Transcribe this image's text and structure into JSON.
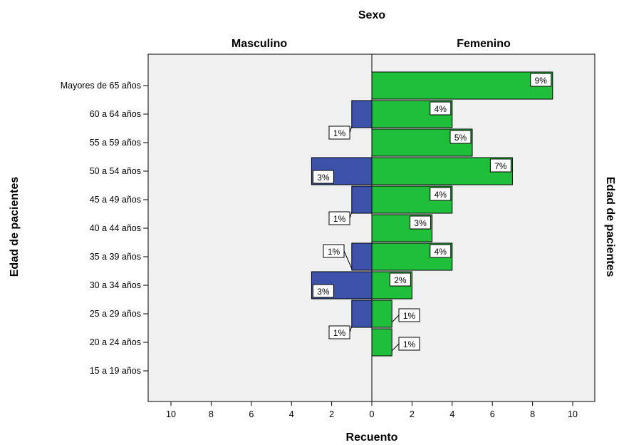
{
  "chart_data": {
    "type": "bar",
    "orientation": "horizontal-population-pyramid",
    "title": "Sexo",
    "xlabel": "Recuento",
    "ylabel": "Edad de pacientes",
    "ylabel_right": "Edad de pacientes",
    "xlim": [
      0,
      10
    ],
    "x_ticks": [
      "10",
      "8",
      "6",
      "4",
      "2",
      "0",
      "2",
      "4",
      "6",
      "8",
      "10"
    ],
    "grid": false,
    "categories": [
      "Mayores de 65 años",
      "60 a 64 años",
      "55 a 59 años",
      "50 a 54 años",
      "45 a 49 años",
      "40 a 44 años",
      "35 a 39 años",
      "30 a 34 años",
      "25 a 29 años",
      "20 a 24 años",
      "15 a 19 años"
    ],
    "series": [
      {
        "name": "Masculino",
        "side": "left",
        "color": "#3c52a8",
        "values": [
          0,
          1,
          0,
          3,
          1,
          0,
          1,
          3,
          1,
          0,
          0
        ],
        "labels": [
          "",
          "1%",
          "",
          "3%",
          "1%",
          "",
          "1%",
          "3%",
          "1%",
          "",
          ""
        ]
      },
      {
        "name": "Femenino",
        "side": "right",
        "color": "#1fbf3b",
        "values": [
          9,
          4,
          5,
          7,
          4,
          3,
          4,
          2,
          1,
          1,
          0
        ],
        "labels": [
          "9%",
          "4%",
          "5%",
          "7%",
          "4%",
          "3%",
          "4%",
          "2%",
          "1%",
          "1%",
          ""
        ]
      }
    ],
    "colors": {
      "background": "#f0f0f0",
      "axis": "#000000",
      "label_box": "#ffffff"
    }
  }
}
